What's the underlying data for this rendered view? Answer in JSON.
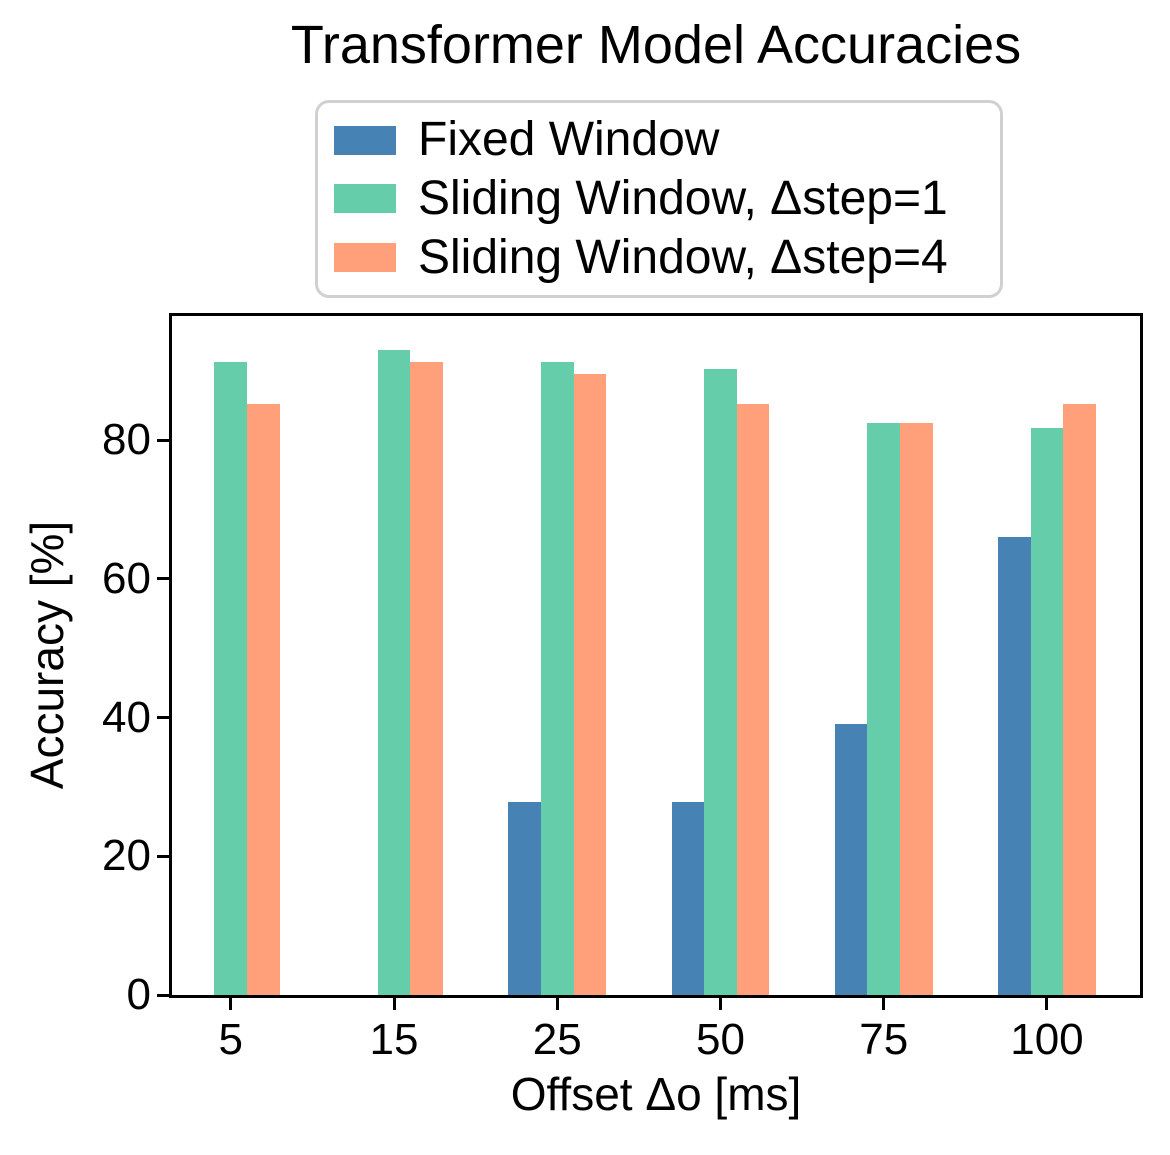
{
  "chart_data": {
    "type": "bar",
    "title": "Transformer Model Accuracies",
    "xlabel": "Offset Δo [ms]",
    "ylabel": "Accuracy [%]",
    "categories": [
      "5",
      "15",
      "25",
      "50",
      "75",
      "100"
    ],
    "series": [
      {
        "name": "Fixed Window",
        "color": "#4682B4",
        "offset": -0.2,
        "values": [
          0,
          0,
          27.8,
          27.8,
          39.1,
          66.1
        ]
      },
      {
        "name": "Sliding Window, Δstep=1",
        "color": "#66CDAA",
        "offset": 0.0,
        "values": [
          91.2,
          93.0,
          91.2,
          90.3,
          82.5,
          81.7
        ]
      },
      {
        "name": "Sliding Window, Δstep=4",
        "color": "#FFA07A",
        "offset": 0.2,
        "values": [
          85.2,
          91.2,
          89.6,
          85.2,
          82.5,
          85.2
        ]
      }
    ],
    "bar_width": 0.2,
    "yticks": [
      0,
      20,
      40,
      60,
      80
    ],
    "ylim": [
      0,
      97.9
    ],
    "xlim": [
      -0.36,
      5.57
    ],
    "grid": false,
    "legend_position": "upper center",
    "colors": {
      "spine": "#000000",
      "legend_border": "#d0d0d0",
      "background": "#ffffff"
    }
  }
}
